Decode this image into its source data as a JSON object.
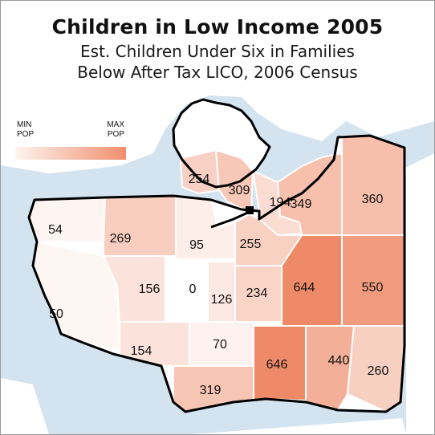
{
  "title": "Children in Low Income 2005",
  "subtitle_line1": "Est. Children Under Six in Families",
  "subtitle_line2": "Below After Tax LICO, 2006 Census",
  "legend": {
    "min_top": "MIN",
    "min_bottom": "POP",
    "max_top": "MAX",
    "max_bottom": "POP",
    "color_min": "#fdf4ef",
    "color_max": "#f08f6e"
  },
  "colors": {
    "water": "#d3e3ef",
    "land": "#ffffff",
    "outline": "#000000",
    "region_min": "#ffffff",
    "region_max": "#ee8a68"
  },
  "value_range": [
    0,
    646
  ],
  "regions": [
    {
      "id": "r254",
      "value": 254,
      "label": "254"
    },
    {
      "id": "r309",
      "value": 309,
      "label": "309"
    },
    {
      "id": "r194",
      "value": 194,
      "label": "194"
    },
    {
      "id": "r349",
      "value": 349,
      "label": "349"
    },
    {
      "id": "r360",
      "value": 360,
      "label": "360"
    },
    {
      "id": "r54",
      "value": 54,
      "label": "54"
    },
    {
      "id": "r269",
      "value": 269,
      "label": "269"
    },
    {
      "id": "r95",
      "value": 95,
      "label": "95"
    },
    {
      "id": "r255",
      "value": 255,
      "label": "255"
    },
    {
      "id": "r50",
      "value": 50,
      "label": "50"
    },
    {
      "id": "r156",
      "value": 156,
      "label": "156"
    },
    {
      "id": "r0",
      "value": 0,
      "label": "0"
    },
    {
      "id": "r126",
      "value": 126,
      "label": "126"
    },
    {
      "id": "r234",
      "value": 234,
      "label": "234"
    },
    {
      "id": "r644",
      "value": 644,
      "label": "644"
    },
    {
      "id": "r550",
      "value": 550,
      "label": "550"
    },
    {
      "id": "r154",
      "value": 154,
      "label": "154"
    },
    {
      "id": "r70",
      "value": 70,
      "label": "70"
    },
    {
      "id": "r646",
      "value": 646,
      "label": "646"
    },
    {
      "id": "r440",
      "value": 440,
      "label": "440"
    },
    {
      "id": "r260",
      "value": 260,
      "label": "260"
    },
    {
      "id": "r319",
      "value": 319,
      "label": "319"
    }
  ]
}
